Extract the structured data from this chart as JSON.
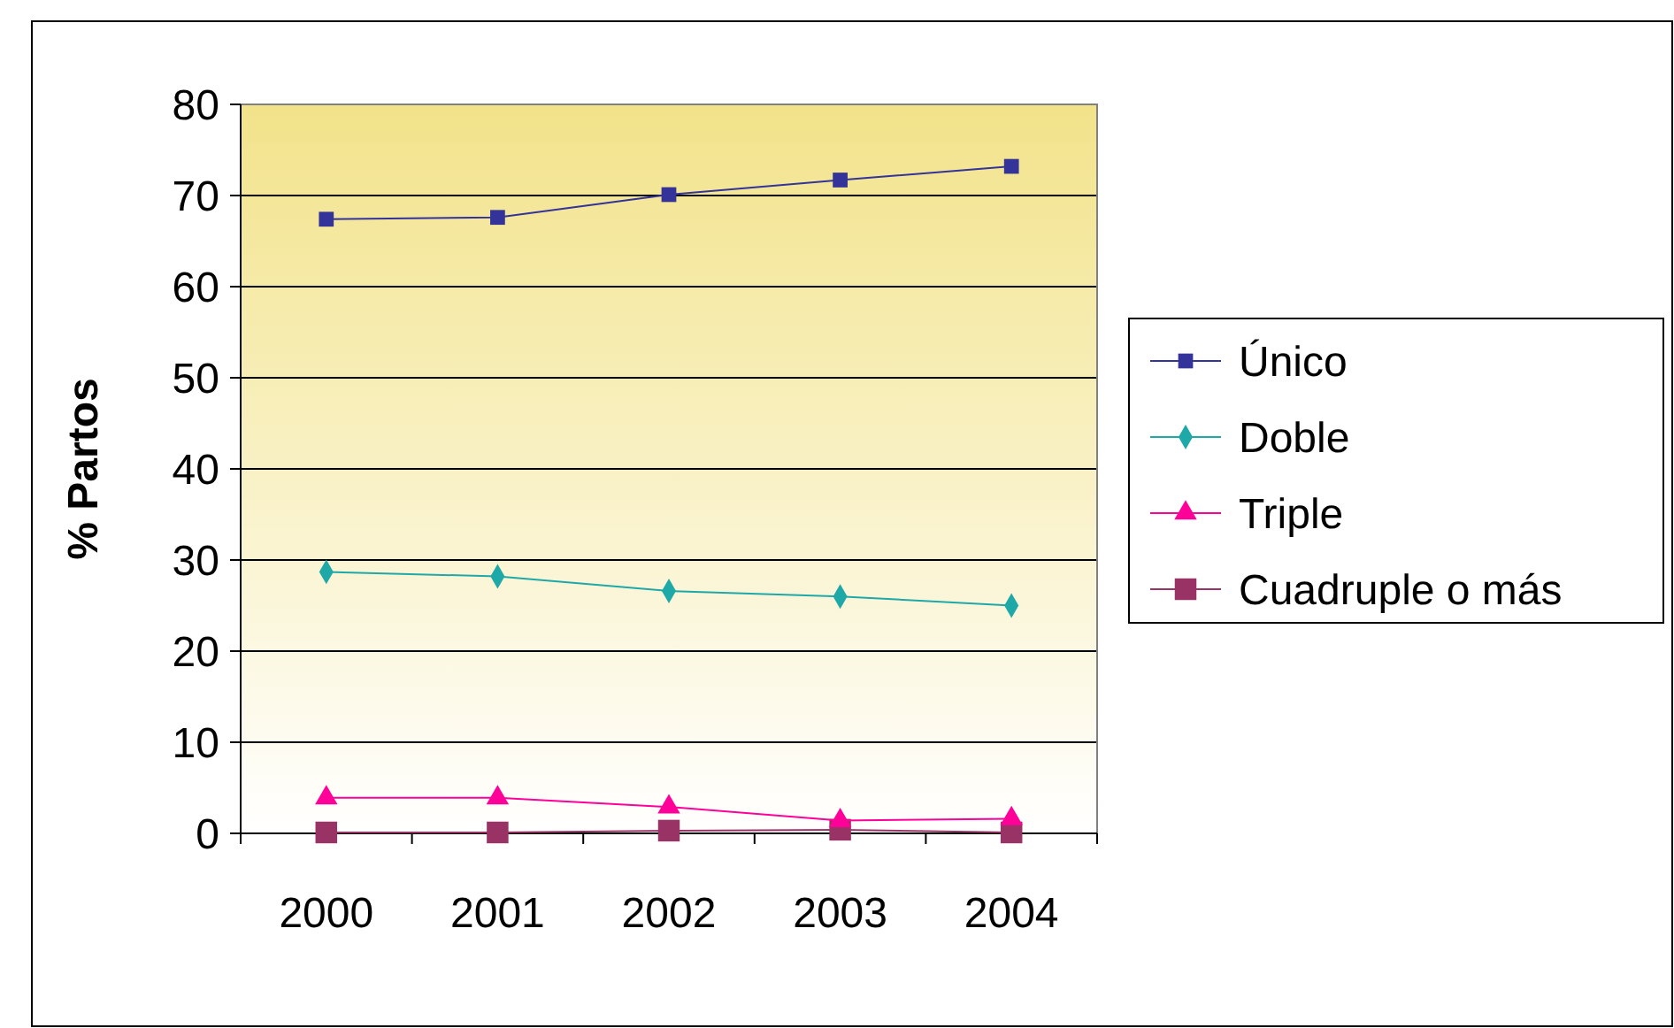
{
  "chart_data": {
    "type": "line",
    "ylabel": "% Partos",
    "categories": [
      "2000",
      "2001",
      "2002",
      "2003",
      "2004"
    ],
    "series": [
      {
        "name": "Único",
        "color": "#333399",
        "marker": "square",
        "values": [
          67.4,
          67.6,
          70.1,
          71.7,
          73.2
        ]
      },
      {
        "name": "Doble",
        "color": "#1fa8a8",
        "marker": "diamond",
        "values": [
          28.7,
          28.2,
          26.6,
          26.0,
          25.0
        ]
      },
      {
        "name": "Triple",
        "color": "#ff0099",
        "marker": "triangle",
        "values": [
          3.9,
          3.9,
          2.9,
          1.4,
          1.6
        ]
      },
      {
        "name": "Cuadruple o más",
        "color": "#993366",
        "marker": "square",
        "values": [
          0.1,
          0.1,
          0.3,
          0.4,
          0.1
        ]
      }
    ],
    "ylim": [
      0,
      80
    ],
    "yticks": [
      0,
      10,
      20,
      30,
      40,
      50,
      60,
      70,
      80
    ],
    "grid": "y",
    "legend": "right",
    "line_style": "solid"
  }
}
